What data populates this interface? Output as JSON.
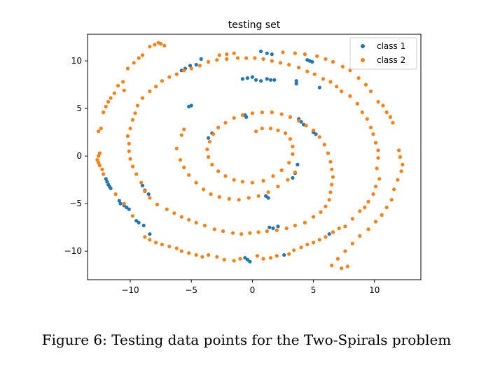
{
  "figure_caption": "Figure 6: Testing data points for the Two-Spirals problem",
  "chart_data": {
    "type": "scatter",
    "title": "testing set",
    "xlabel": "",
    "ylabel": "",
    "xlim": [
      -13.5,
      13.8
    ],
    "ylim": [
      -13.0,
      12.8
    ],
    "xticks": [
      -10,
      -5,
      0,
      5,
      10
    ],
    "yticks": [
      -10,
      -5,
      0,
      5,
      10
    ],
    "xtick_labels": [
      "−10",
      "−5",
      "0",
      "5",
      "10"
    ],
    "ytick_labels": [
      "−10",
      "−5",
      "0",
      "5",
      "10"
    ],
    "grid": false,
    "legend_position": "top-right",
    "series": [
      {
        "name": "class 1",
        "color": "#1f77b4",
        "points": [
          [
            -12.0,
            -2.4
          ],
          [
            -11.9,
            -2.7
          ],
          [
            -11.8,
            -3.0
          ],
          [
            -11.7,
            -3.2
          ],
          [
            -11.6,
            -3.4
          ],
          [
            -10.9,
            -4.7
          ],
          [
            -10.8,
            -5.0
          ],
          [
            -10.5,
            -5.2
          ],
          [
            -10.3,
            -5.4
          ],
          [
            -10.1,
            -5.6
          ],
          [
            -9.5,
            -6.8
          ],
          [
            -9.3,
            -7.0
          ],
          [
            -8.9,
            -7.3
          ],
          [
            -8.4,
            -8.2
          ],
          [
            -8.5,
            -4.0
          ],
          [
            -8.8,
            -3.6
          ],
          [
            -9.0,
            -3.1
          ],
          [
            -5.0,
            5.3
          ],
          [
            -5.2,
            5.2
          ],
          [
            -5.8,
            9.0
          ],
          [
            -5.5,
            9.2
          ],
          [
            -5.1,
            9.5
          ],
          [
            -4.6,
            9.6
          ],
          [
            -4.2,
            10.2
          ],
          [
            -0.6,
            4.3
          ],
          [
            -0.5,
            4.1
          ],
          [
            -3.3,
            2.4
          ],
          [
            -3.6,
            1.9
          ],
          [
            -0.8,
            8.1
          ],
          [
            -0.4,
            8.2
          ],
          [
            0.0,
            8.3
          ],
          [
            0.3,
            8.0
          ],
          [
            0.7,
            7.9
          ],
          [
            1.2,
            8.1
          ],
          [
            1.5,
            8.0
          ],
          [
            1.8,
            8.0
          ],
          [
            -0.6,
            -10.7
          ],
          [
            -0.4,
            -10.9
          ],
          [
            -0.2,
            -11.1
          ],
          [
            1.4,
            -7.5
          ],
          [
            1.7,
            -7.6
          ],
          [
            2.1,
            -7.4
          ],
          [
            2.6,
            -10.4
          ],
          [
            1.1,
            -4.2
          ],
          [
            1.3,
            -4.4
          ],
          [
            3.6,
            7.9
          ],
          [
            3.6,
            7.6
          ],
          [
            4.5,
            10.1
          ],
          [
            4.7,
            10.0
          ],
          [
            4.9,
            9.9
          ],
          [
            3.8,
            3.9
          ],
          [
            4.0,
            3.6
          ],
          [
            4.2,
            3.3
          ],
          [
            5.0,
            2.5
          ],
          [
            5.2,
            2.3
          ],
          [
            3.7,
            -0.9
          ],
          [
            3.5,
            -1.8
          ],
          [
            3.3,
            -2.3
          ],
          [
            6.3,
            -8.2
          ],
          [
            6.6,
            -8.0
          ],
          [
            5.5,
            7.2
          ],
          [
            0.7,
            11.0
          ],
          [
            1.2,
            10.8
          ],
          [
            1.6,
            10.7
          ]
        ]
      },
      {
        "name": "class 2",
        "color": "#ff7f0e",
        "points": [
          [
            -8.4,
            11.5
          ],
          [
            -8.0,
            11.7
          ],
          [
            -7.7,
            11.9
          ],
          [
            -9.0,
            10.6
          ],
          [
            -9.3,
            10.3
          ],
          [
            -9.7,
            9.8
          ],
          [
            -10.2,
            9.2
          ],
          [
            -10.6,
            7.8
          ],
          [
            -11.0,
            7.4
          ],
          [
            -11.3,
            6.6
          ],
          [
            -11.6,
            6.1
          ],
          [
            -11.8,
            5.7
          ],
          [
            -12.0,
            5.2
          ],
          [
            -12.2,
            4.6
          ],
          [
            -12.4,
            2.9
          ],
          [
            -12.6,
            2.6
          ],
          [
            -12.5,
            0.3
          ],
          [
            -12.6,
            0.0
          ],
          [
            -12.7,
            -0.4
          ],
          [
            -12.6,
            -0.7
          ],
          [
            -12.5,
            -1.0
          ],
          [
            -12.2,
            -1.9
          ],
          [
            -11.2,
            -4.0
          ],
          [
            -10.5,
            -5.0
          ],
          [
            -9.8,
            -6.3
          ],
          [
            -8.8,
            -8.5
          ],
          [
            -8.4,
            -8.8
          ],
          [
            -7.9,
            -9.1
          ],
          [
            -7.4,
            -9.3
          ],
          [
            -6.8,
            -9.5
          ],
          [
            -6.2,
            -9.7
          ],
          [
            -5.8,
            -10.0
          ],
          [
            -5.2,
            -10.2
          ],
          [
            -4.6,
            -10.4
          ],
          [
            -4.1,
            -10.6
          ],
          [
            -3.6,
            -10.4
          ],
          [
            -2.9,
            -10.6
          ],
          [
            -2.3,
            -10.9
          ],
          [
            -1.5,
            -11.0
          ],
          [
            -1.0,
            -10.8
          ],
          [
            0.4,
            -10.5
          ],
          [
            0.9,
            -10.8
          ],
          [
            1.5,
            -10.7
          ],
          [
            2.0,
            -10.5
          ],
          [
            3.0,
            -10.3
          ],
          [
            3.4,
            -9.9
          ],
          [
            4.0,
            -9.6
          ],
          [
            4.5,
            -9.3
          ],
          [
            5.0,
            -9.1
          ],
          [
            5.5,
            -8.8
          ],
          [
            6.0,
            -8.5
          ],
          [
            6.6,
            -8.0
          ],
          [
            7.1,
            -7.6
          ],
          [
            7.6,
            -7.4
          ],
          [
            8.2,
            -6.6
          ],
          [
            8.8,
            -5.8
          ],
          [
            9.2,
            -5.4
          ],
          [
            9.5,
            -4.8
          ],
          [
            9.9,
            -4.0
          ],
          [
            10.1,
            -3.2
          ],
          [
            10.4,
            -2.4
          ],
          [
            10.2,
            -1.3
          ],
          [
            10.3,
            -0.2
          ],
          [
            10.3,
            0.6
          ],
          [
            10.1,
            1.4
          ],
          [
            9.9,
            2.3
          ],
          [
            9.7,
            3.0
          ],
          [
            9.4,
            3.9
          ],
          [
            9.0,
            4.6
          ],
          [
            8.6,
            5.5
          ],
          [
            8.0,
            6.3
          ],
          [
            7.3,
            6.8
          ],
          [
            6.9,
            7.3
          ],
          [
            6.4,
            7.8
          ],
          [
            5.8,
            8.1
          ],
          [
            5.1,
            8.6
          ],
          [
            4.5,
            8.9
          ],
          [
            3.8,
            9.3
          ],
          [
            3.0,
            9.6
          ],
          [
            2.3,
            9.8
          ],
          [
            1.6,
            10.0
          ],
          [
            0.9,
            10.2
          ],
          [
            0.2,
            10.3
          ],
          [
            -0.5,
            10.3
          ],
          [
            -1.2,
            10.3
          ],
          [
            -2.1,
            10.2
          ],
          [
            -2.9,
            10.1
          ],
          [
            -3.6,
            9.9
          ],
          [
            -4.3,
            9.5
          ],
          [
            -5.0,
            9.2
          ],
          [
            -5.6,
            9.0
          ],
          [
            -6.2,
            8.6
          ],
          [
            -6.8,
            8.3
          ],
          [
            -7.4,
            7.9
          ],
          [
            -7.9,
            7.3
          ],
          [
            -8.4,
            6.8
          ],
          [
            -9.0,
            6.1
          ],
          [
            -9.4,
            5.3
          ],
          [
            -9.6,
            4.5
          ],
          [
            -9.8,
            3.8
          ],
          [
            -10.0,
            2.9
          ],
          [
            -10.2,
            2.1
          ],
          [
            -10.1,
            1.3
          ],
          [
            -10.1,
            0.5
          ],
          [
            -10.0,
            -0.3
          ],
          [
            -9.8,
            -1.1
          ],
          [
            -9.5,
            -1.9
          ],
          [
            -9.1,
            -2.8
          ],
          [
            -8.8,
            -3.7
          ],
          [
            -8.4,
            -4.4
          ],
          [
            -7.8,
            -5.1
          ],
          [
            -7.0,
            -5.6
          ],
          [
            -6.4,
            -6.0
          ],
          [
            -5.8,
            -6.4
          ],
          [
            -5.2,
            -6.7
          ],
          [
            -4.6,
            -7.0
          ],
          [
            -3.9,
            -7.3
          ],
          [
            -3.1,
            -7.7
          ],
          [
            -2.4,
            -7.9
          ],
          [
            -1.6,
            -8.1
          ],
          [
            -0.9,
            -8.2
          ],
          [
            -0.2,
            -8.1
          ],
          [
            0.5,
            -8.0
          ],
          [
            1.2,
            -7.9
          ],
          [
            2.0,
            -7.8
          ],
          [
            2.8,
            -7.6
          ],
          [
            3.5,
            -7.3
          ],
          [
            4.3,
            -7.0
          ],
          [
            5.0,
            -6.4
          ],
          [
            5.6,
            -5.9
          ],
          [
            6.0,
            -5.3
          ],
          [
            6.3,
            -4.6
          ],
          [
            6.4,
            -3.8
          ],
          [
            6.5,
            -3.0
          ],
          [
            6.6,
            -2.2
          ],
          [
            6.5,
            -1.4
          ],
          [
            6.4,
            -0.6
          ],
          [
            6.2,
            0.3
          ],
          [
            5.9,
            1.2
          ],
          [
            5.5,
            2.0
          ],
          [
            5.0,
            2.7
          ],
          [
            4.4,
            3.2
          ],
          [
            3.8,
            3.7
          ],
          [
            3.1,
            4.1
          ],
          [
            2.4,
            4.4
          ],
          [
            1.6,
            4.6
          ],
          [
            0.8,
            4.6
          ],
          [
            0.0,
            4.5
          ],
          [
            -0.8,
            4.3
          ],
          [
            -1.5,
            4.0
          ],
          [
            -2.2,
            3.5
          ],
          [
            -2.8,
            3.0
          ],
          [
            -3.2,
            2.3
          ],
          [
            -3.5,
            1.5
          ],
          [
            -3.7,
            0.7
          ],
          [
            -3.6,
            -0.1
          ],
          [
            -3.3,
            -0.9
          ],
          [
            -2.8,
            -1.6
          ],
          [
            -2.2,
            -2.1
          ],
          [
            -1.5,
            -2.5
          ],
          [
            -0.8,
            -2.7
          ],
          [
            0.0,
            -2.8
          ],
          [
            0.9,
            -2.6
          ],
          [
            1.7,
            -2.1
          ],
          [
            2.4,
            -1.5
          ],
          [
            3.0,
            -0.7
          ],
          [
            3.3,
            0.2
          ],
          [
            3.3,
            1.0
          ],
          [
            3.1,
            1.8
          ],
          [
            2.7,
            2.4
          ],
          [
            2.1,
            2.7
          ],
          [
            1.5,
            2.9
          ],
          [
            0.8,
            2.9
          ],
          [
            0.3,
            2.6
          ],
          [
            -5.6,
            2.8
          ],
          [
            -5.8,
            2.2
          ],
          [
            -6.2,
            0.8
          ],
          [
            -5.9,
            -0.4
          ],
          [
            -5.6,
            -1.2
          ],
          [
            -5.2,
            -2.0
          ],
          [
            -4.6,
            -2.8
          ],
          [
            -4.0,
            -3.5
          ],
          [
            -3.4,
            -4.0
          ],
          [
            -2.7,
            -4.3
          ],
          [
            -1.9,
            -4.5
          ],
          [
            -1.1,
            -4.6
          ],
          [
            -0.3,
            -4.4
          ],
          [
            0.5,
            -4.2
          ],
          [
            1.3,
            -3.8
          ],
          [
            2.1,
            -3.2
          ],
          [
            2.9,
            -2.5
          ],
          [
            3.5,
            -1.7
          ],
          [
            -7.5,
            11.8
          ],
          [
            -7.2,
            11.6
          ],
          [
            -10.5,
            6.9
          ],
          [
            -12.3,
            -1.4
          ],
          [
            12.0,
            0.6
          ],
          [
            12.1,
            -0.1
          ],
          [
            12.3,
            -0.9
          ],
          [
            12.2,
            -1.6
          ],
          [
            11.9,
            -2.5
          ],
          [
            11.6,
            -3.5
          ],
          [
            11.4,
            -4.6
          ],
          [
            11.0,
            -5.4
          ],
          [
            10.6,
            -6.2
          ],
          [
            10.1,
            -6.9
          ],
          [
            9.5,
            -7.7
          ],
          [
            8.8,
            -8.4
          ],
          [
            8.2,
            -9.2
          ],
          [
            7.6,
            -10.0
          ],
          [
            7.0,
            -10.8
          ],
          [
            6.5,
            -11.5
          ],
          [
            7.3,
            -11.8
          ],
          [
            7.8,
            -11.6
          ],
          [
            11.5,
            3.5
          ],
          [
            11.3,
            4.1
          ],
          [
            11.0,
            4.6
          ],
          [
            10.7,
            5.3
          ],
          [
            10.3,
            5.7
          ],
          [
            9.7,
            6.8
          ],
          [
            9.3,
            7.5
          ],
          [
            8.7,
            8.2
          ],
          [
            8.0,
            9.0
          ],
          [
            7.4,
            9.4
          ],
          [
            6.6,
            9.9
          ],
          [
            6.0,
            10.2
          ],
          [
            5.3,
            10.5
          ],
          [
            4.3,
            10.7
          ],
          [
            3.5,
            10.8
          ],
          [
            2.5,
            10.9
          ],
          [
            -1.5,
            10.8
          ],
          [
            -2.1,
            10.7
          ],
          [
            -2.7,
            10.6
          ]
        ]
      }
    ]
  }
}
